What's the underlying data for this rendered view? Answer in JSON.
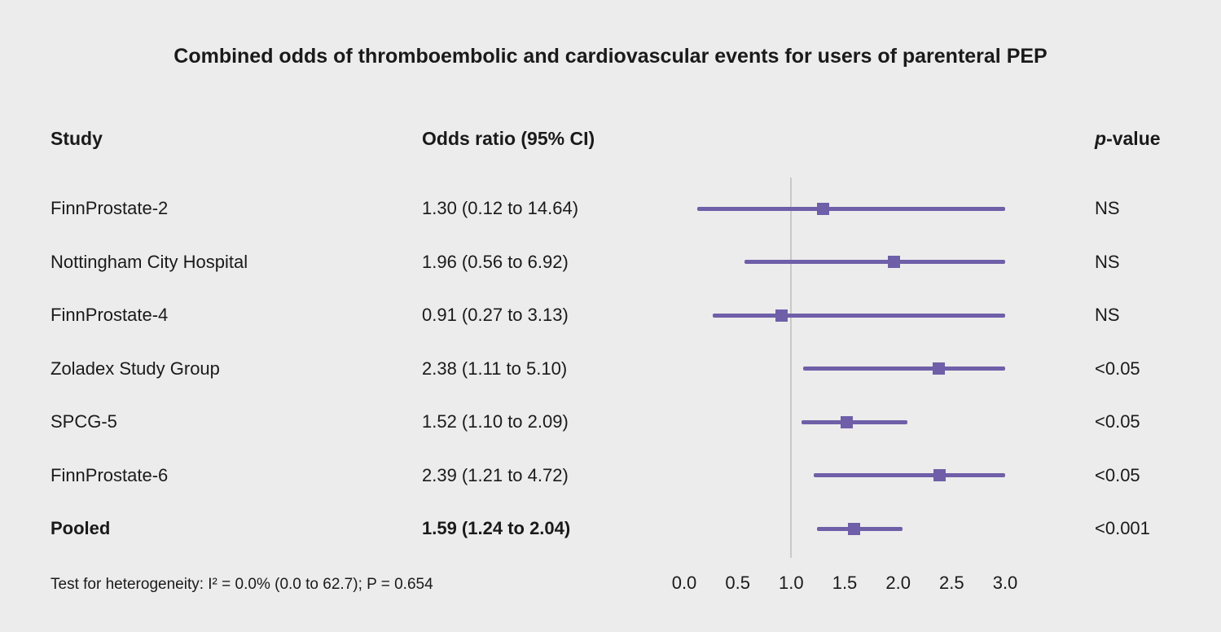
{
  "title": "Combined odds of thromboembolic and cardiovascular events for users of parenteral PEP",
  "columns": {
    "study": "Study",
    "odds_ratio": "Odds ratio (95% CI)",
    "p_italic": "p",
    "p_rest": "-value"
  },
  "footer": "Test for heterogeneity: I² = 0.0% (0.0 to 62.7); P = 0.654",
  "chart_data": {
    "type": "forest",
    "title": "Combined odds of thromboembolic and cardiovascular events for users of parenteral PEP",
    "x_axis": {
      "min": 0.0,
      "max": 3.0,
      "ticks": [
        0.0,
        0.5,
        1.0,
        1.5,
        2.0,
        2.5,
        3.0
      ],
      "tick_labels": [
        "0.0",
        "0.5",
        "1.0",
        "1.5",
        "2.0",
        "2.5",
        "3.0"
      ],
      "reference_line": 1.0,
      "clip_max": 3.0
    },
    "rows": [
      {
        "study": "FinnProstate-2",
        "or": 1.3,
        "ci_low": 0.12,
        "ci_high": 14.64,
        "or_label": "1.30 (0.12 to 14.64)",
        "p_value": "NS",
        "pooled": false
      },
      {
        "study": "Nottingham City Hospital",
        "or": 1.96,
        "ci_low": 0.56,
        "ci_high": 6.92,
        "or_label": "1.96 (0.56 to 6.92)",
        "p_value": "NS",
        "pooled": false
      },
      {
        "study": "FinnProstate-4",
        "or": 0.91,
        "ci_low": 0.27,
        "ci_high": 3.13,
        "or_label": "0.91 (0.27 to 3.13)",
        "p_value": "NS",
        "pooled": false
      },
      {
        "study": "Zoladex Study Group",
        "or": 2.38,
        "ci_low": 1.11,
        "ci_high": 5.1,
        "or_label": "2.38 (1.11 to 5.10)",
        "p_value": "<0.05",
        "pooled": false
      },
      {
        "study": "SPCG-5",
        "or": 1.52,
        "ci_low": 1.1,
        "ci_high": 2.09,
        "or_label": "1.52 (1.10 to 2.09)",
        "p_value": "<0.05",
        "pooled": false
      },
      {
        "study": "FinnProstate-6",
        "or": 2.39,
        "ci_low": 1.21,
        "ci_high": 4.72,
        "or_label": "2.39 (1.21 to 4.72)",
        "p_value": "<0.05",
        "pooled": false
      },
      {
        "study": "Pooled",
        "or": 1.59,
        "ci_low": 1.24,
        "ci_high": 2.04,
        "or_label": "1.59 (1.24 to 2.04)",
        "p_value": "<0.001",
        "pooled": true
      }
    ]
  },
  "colors": {
    "marker": "#6f5fa8",
    "ci_line": "#6f5fa8",
    "reference_line": "#c9c9c9",
    "background": "#ececec",
    "text": "#1a1a1a"
  }
}
